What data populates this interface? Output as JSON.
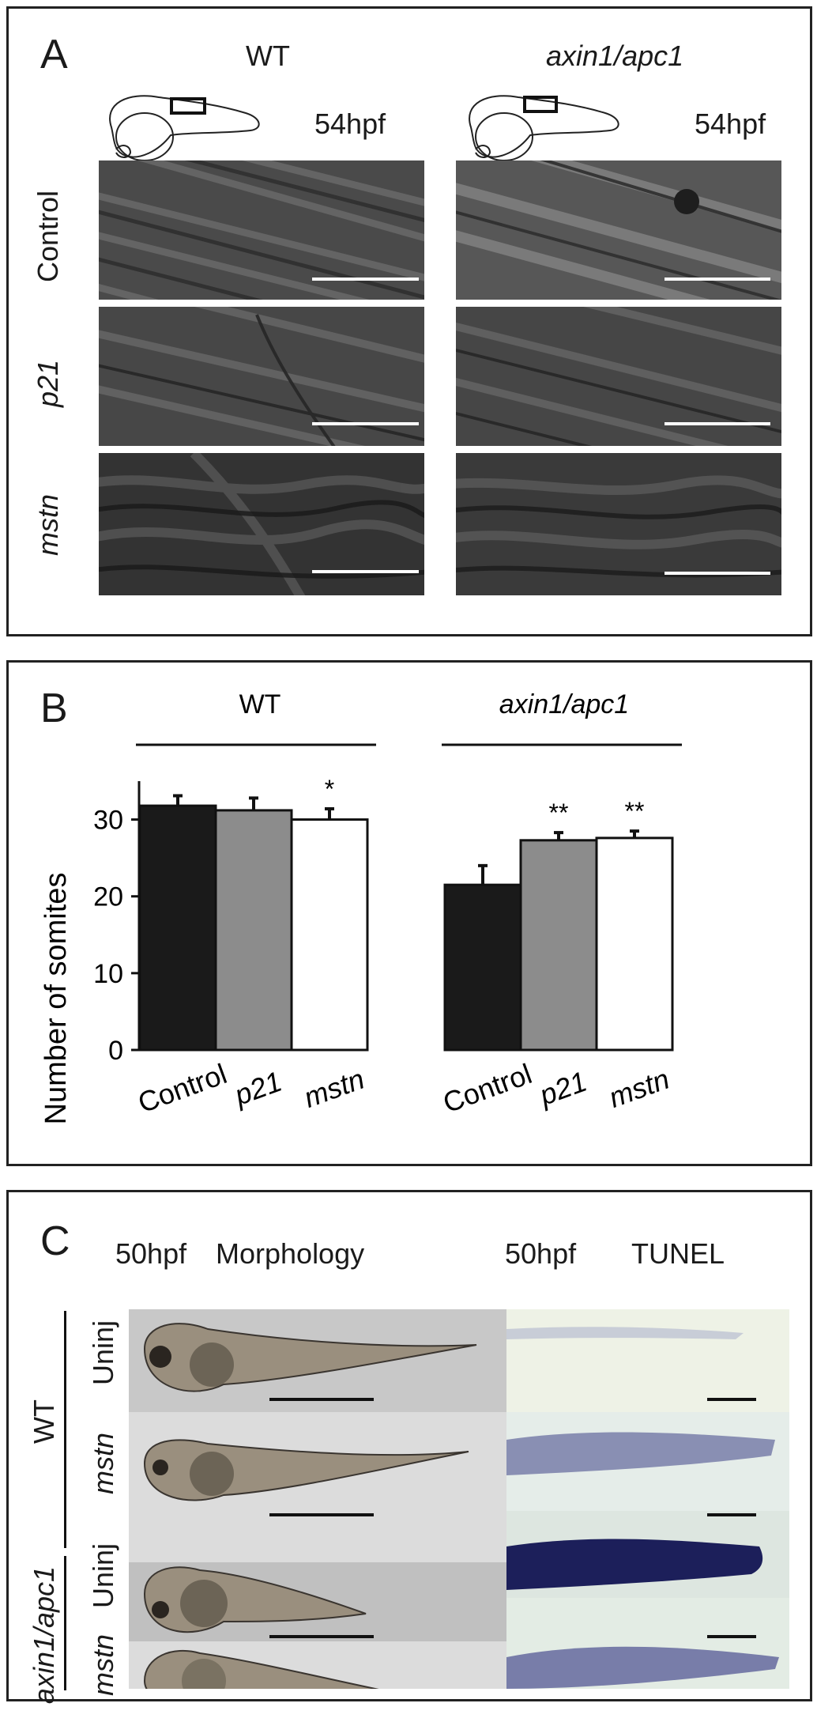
{
  "panel_a": {
    "letter": "A",
    "columns": [
      {
        "label": "WT",
        "stage": "54hpf",
        "italic": false
      },
      {
        "label": "axin1/apc1",
        "stage": "54hpf",
        "italic": true
      }
    ],
    "rows": [
      {
        "label": "Control",
        "italic": false
      },
      {
        "label": "p21",
        "italic": true
      },
      {
        "label": "mstn",
        "italic": true
      }
    ]
  },
  "panel_b": {
    "letter": "B",
    "group_labels": [
      "WT",
      "axin1/apc1"
    ],
    "chart_data": {
      "type": "bar",
      "ylabel": "Number of somites",
      "ylim": [
        0,
        35
      ],
      "yticks": [
        0,
        10,
        20,
        30
      ],
      "groups": [
        {
          "name": "WT",
          "categories": [
            "Control",
            "p21",
            "mstn"
          ],
          "values": [
            31.8,
            31.2,
            30.0
          ],
          "errors": [
            1.3,
            1.6,
            1.4
          ],
          "significance": [
            "",
            "",
            "*"
          ]
        },
        {
          "name": "axin1/apc1",
          "categories": [
            "Control",
            "p21",
            "mstn"
          ],
          "values": [
            21.5,
            27.3,
            27.6
          ],
          "errors": [
            2.5,
            1.0,
            0.9
          ],
          "significance": [
            "",
            "**",
            "**"
          ]
        }
      ],
      "bar_colors": [
        "#1a1a1a",
        "#8c8c8c",
        "#ffffff"
      ],
      "category_italic": [
        false,
        true,
        true
      ]
    }
  },
  "panel_c": {
    "letter": "C",
    "header_left_stage": "50hpf",
    "header_left_title": "Morphology",
    "header_right_stage": "50hpf",
    "header_right_title": "TUNEL",
    "genotypes": [
      "WT",
      "axin1/apc1"
    ],
    "rows": [
      {
        "label": "Uninj",
        "italic": false
      },
      {
        "label": "mstn",
        "italic": true
      },
      {
        "label": "Uninj",
        "italic": false
      },
      {
        "label": "mstn",
        "italic": true
      }
    ]
  },
  "colors": {
    "border": "#222222",
    "control_bar": "#1a1a1a",
    "p21_bar": "#8c8c8c",
    "mstn_bar": "#ffffff",
    "tunel_stain": "#1c1f5a"
  }
}
